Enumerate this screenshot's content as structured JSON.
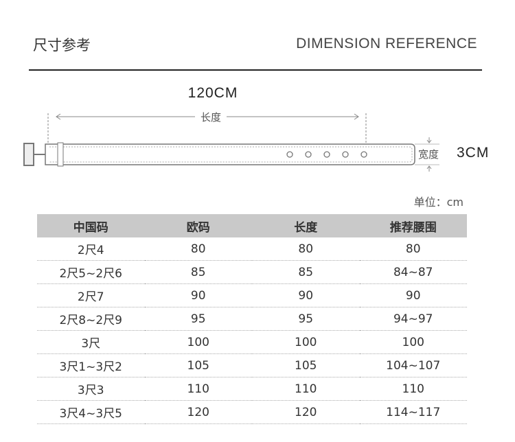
{
  "header": {
    "title_cn": "尺寸参考",
    "title_en": "DIMENSION REFERENCE"
  },
  "diagram": {
    "length_value": "120CM",
    "length_label": "长度",
    "width_label": "宽度",
    "width_value": "3CM",
    "hole_count": 5
  },
  "unit": "单位：cm",
  "table": {
    "headers": [
      "中国码",
      "欧码",
      "长度",
      "推荐腰围"
    ],
    "rows": [
      [
        "2尺4",
        "80",
        "80",
        "80"
      ],
      [
        "2尺5~2尺6",
        "85",
        "85",
        "84~87"
      ],
      [
        "2尺7",
        "90",
        "90",
        "90"
      ],
      [
        "2尺8~2尺9",
        "95",
        "95",
        "94~97"
      ],
      [
        "3尺",
        "100",
        "100",
        "100"
      ],
      [
        "3尺1~3尺2",
        "105",
        "105",
        "104~107"
      ],
      [
        "3尺3",
        "110",
        "110",
        "110"
      ],
      [
        "3尺4~3尺5",
        "120",
        "120",
        "114~117"
      ]
    ]
  }
}
